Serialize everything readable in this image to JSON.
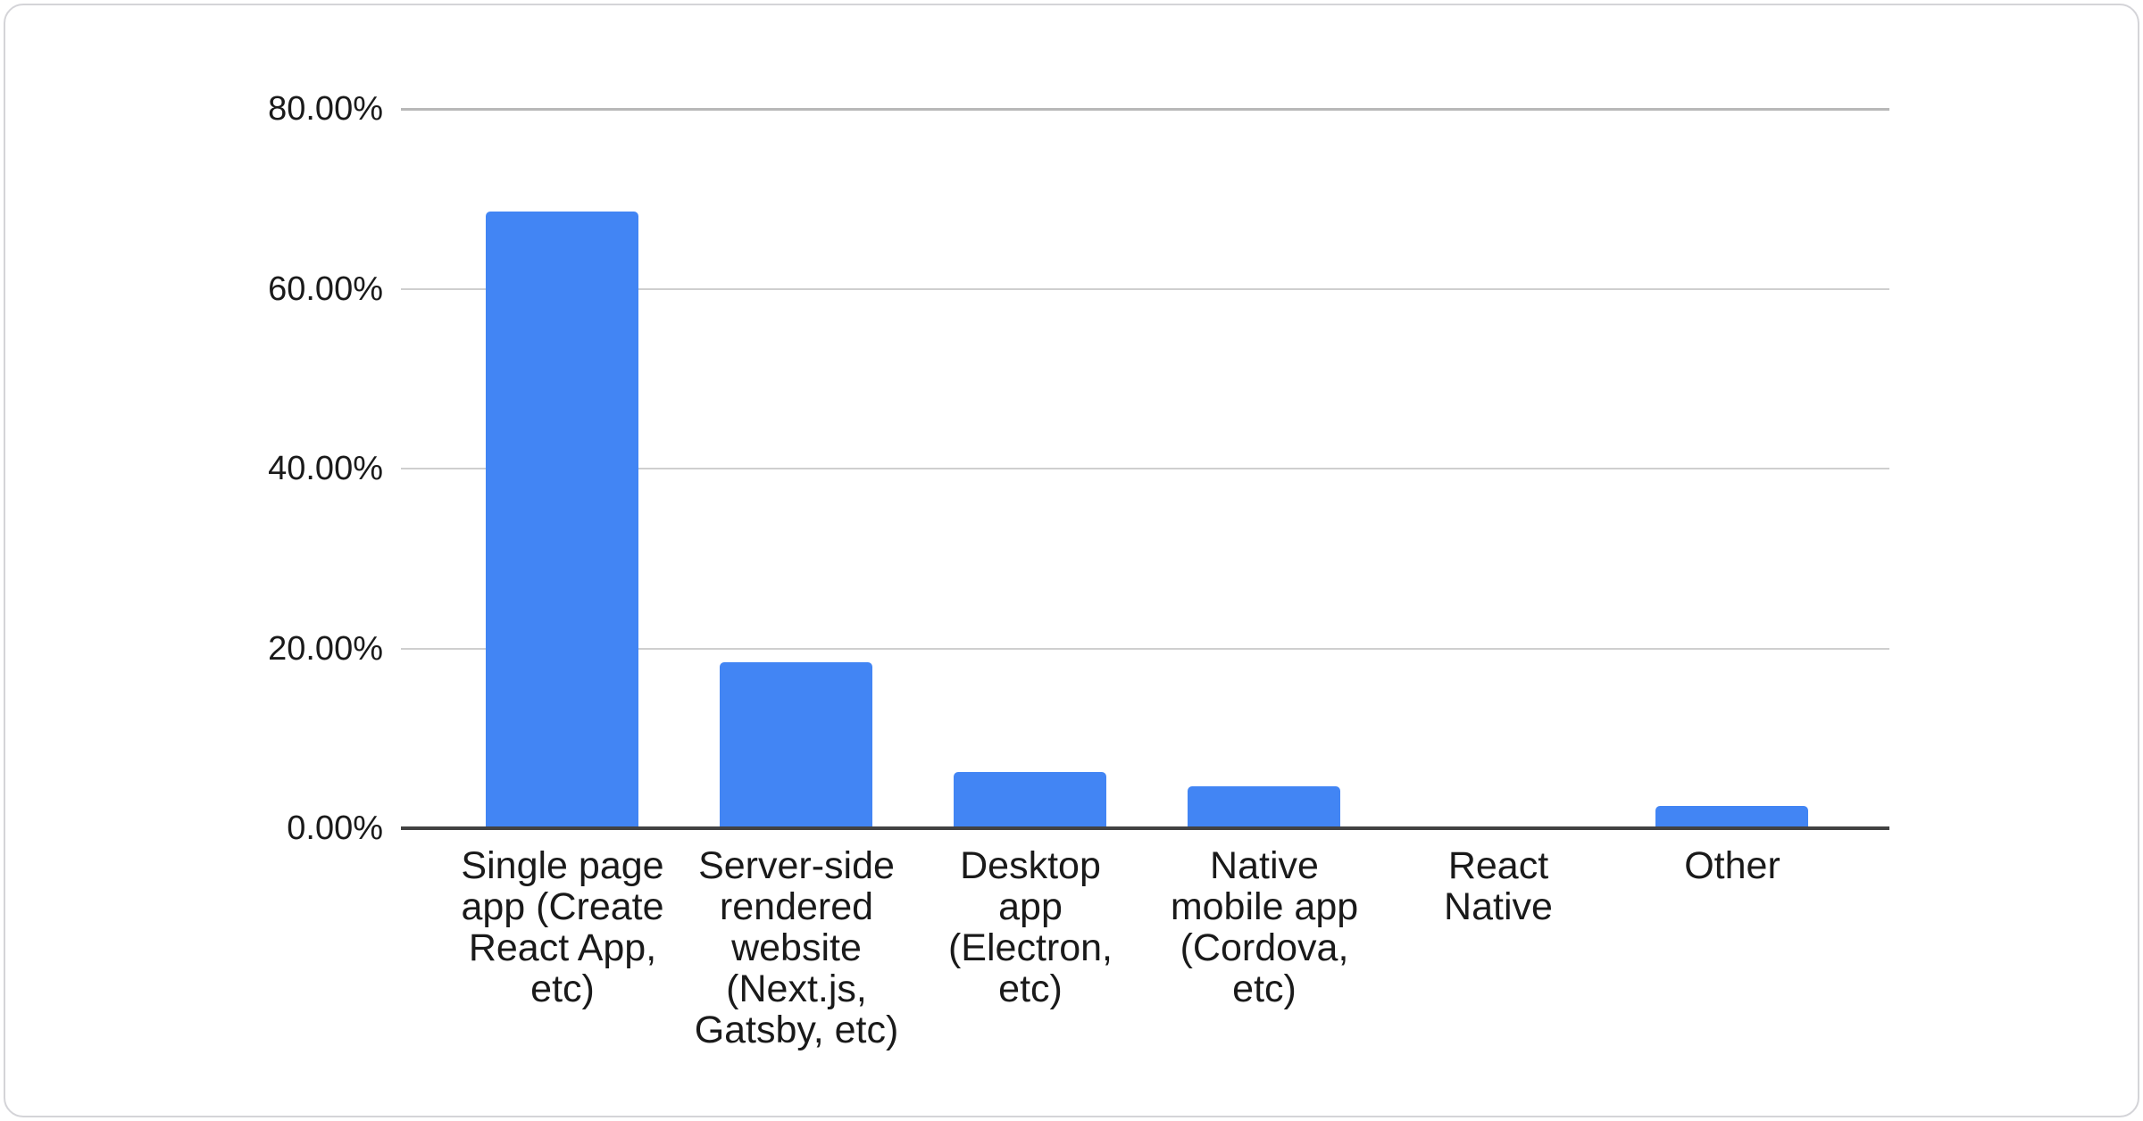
{
  "chart_data": {
    "type": "bar",
    "title": "",
    "xlabel": "",
    "ylabel": "",
    "categories": [
      "Single page\napp (Create\nReact App,\netc)",
      "Server-side\nrendered\nwebsite\n(Next.js,\nGatsby, etc)",
      "Desktop\napp\n(Electron,\netc)",
      "Native\nmobile app\n(Cordova,\netc)",
      "React\nNative",
      "Other"
    ],
    "category_names": [
      "single-page-app",
      "server-side-rendered-website",
      "desktop-app",
      "native-mobile-app",
      "react-native",
      "other"
    ],
    "values": [
      68.4,
      18.3,
      6.1,
      4.5,
      0,
      2.3
    ],
    "unit": "%",
    "ylim": [
      0,
      80
    ],
    "yticks": [
      {
        "value": 80,
        "label": "80.00%"
      },
      {
        "value": 60,
        "label": "60.00%"
      },
      {
        "value": 40,
        "label": "40.00%"
      },
      {
        "value": 20,
        "label": "20.00%"
      },
      {
        "value": 0,
        "label": "0.00%"
      }
    ],
    "grid": true,
    "legend_position": "none",
    "bar_color": "#4285f4",
    "axis_line_color": "#424242",
    "gridline_color": "#cfcfcf",
    "top_gridline_color": "#b8b8b8",
    "label_color": "#1a1a1a",
    "card_background": "#ffffff",
    "card_border_color": "#d4d4d8"
  }
}
